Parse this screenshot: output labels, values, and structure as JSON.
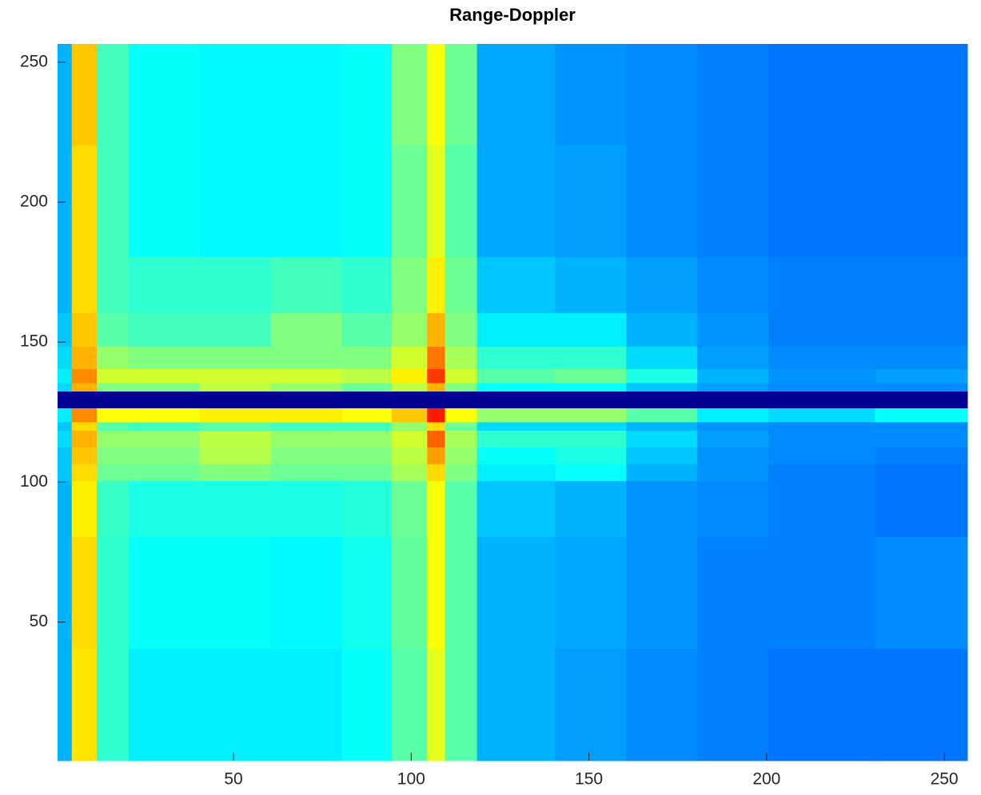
{
  "chart_data": {
    "type": "heatmap",
    "title": "Range-Doppler",
    "colormap": "jet",
    "clim": [
      0,
      1
    ],
    "x_edges": [
      0.5,
      4.5,
      11.5,
      20.5,
      40.5,
      60.5,
      80.5,
      94.5,
      104.5,
      109.5,
      118.5,
      140.5,
      160.5,
      180.5,
      200.5,
      230.5,
      256.5
    ],
    "y_edges": [
      0.5,
      40.5,
      80.5,
      100.5,
      106.5,
      112.5,
      118.5,
      121.5,
      126.5,
      132.5,
      135.5,
      140.5,
      148.5,
      160.5,
      180.5,
      220.5,
      256.5
    ],
    "z": [
      [
        0.3,
        0.65,
        0.42,
        0.36,
        0.36,
        0.36,
        0.38,
        0.46,
        0.6,
        0.46,
        0.3,
        0.28,
        0.26,
        0.25,
        0.24,
        0.24
      ],
      [
        0.3,
        0.66,
        0.42,
        0.38,
        0.38,
        0.37,
        0.39,
        0.47,
        0.62,
        0.46,
        0.3,
        0.29,
        0.27,
        0.25,
        0.25,
        0.26
      ],
      [
        0.3,
        0.64,
        0.43,
        0.4,
        0.4,
        0.4,
        0.41,
        0.48,
        0.62,
        0.46,
        0.32,
        0.3,
        0.27,
        0.26,
        0.25,
        0.24
      ],
      [
        0.32,
        0.66,
        0.48,
        0.48,
        0.5,
        0.48,
        0.48,
        0.54,
        0.66,
        0.5,
        0.36,
        0.38,
        0.3,
        0.27,
        0.25,
        0.24
      ],
      [
        0.32,
        0.68,
        0.5,
        0.5,
        0.55,
        0.5,
        0.5,
        0.56,
        0.72,
        0.52,
        0.38,
        0.4,
        0.32,
        0.27,
        0.26,
        0.25
      ],
      [
        0.34,
        0.7,
        0.52,
        0.52,
        0.56,
        0.52,
        0.52,
        0.58,
        0.78,
        0.54,
        0.42,
        0.42,
        0.34,
        0.28,
        0.26,
        0.26
      ],
      [
        0.32,
        0.66,
        0.46,
        0.44,
        0.46,
        0.44,
        0.44,
        0.52,
        0.66,
        0.48,
        0.34,
        0.34,
        0.3,
        0.27,
        0.26,
        0.26
      ],
      [
        0.36,
        0.74,
        0.62,
        0.62,
        0.64,
        0.64,
        0.62,
        0.68,
        0.85,
        0.62,
        0.52,
        0.52,
        0.46,
        0.36,
        0.34,
        0.38
      ],
      [
        0.02,
        0.02,
        0.02,
        0.02,
        0.02,
        0.02,
        0.02,
        0.02,
        0.02,
        0.02,
        0.02,
        0.02,
        0.02,
        0.02,
        0.02,
        0.02
      ],
      [
        0.34,
        0.7,
        0.5,
        0.5,
        0.56,
        0.52,
        0.48,
        0.56,
        0.7,
        0.5,
        0.38,
        0.38,
        0.32,
        0.28,
        0.26,
        0.26
      ],
      [
        0.36,
        0.74,
        0.58,
        0.58,
        0.58,
        0.58,
        0.56,
        0.64,
        0.82,
        0.58,
        0.46,
        0.48,
        0.4,
        0.3,
        0.27,
        0.28
      ],
      [
        0.34,
        0.7,
        0.52,
        0.5,
        0.5,
        0.5,
        0.5,
        0.58,
        0.76,
        0.54,
        0.42,
        0.42,
        0.34,
        0.28,
        0.26,
        0.26
      ],
      [
        0.32,
        0.68,
        0.46,
        0.44,
        0.44,
        0.5,
        0.46,
        0.52,
        0.7,
        0.5,
        0.36,
        0.36,
        0.3,
        0.27,
        0.25,
        0.25
      ],
      [
        0.3,
        0.66,
        0.44,
        0.42,
        0.42,
        0.44,
        0.42,
        0.5,
        0.64,
        0.48,
        0.32,
        0.3,
        0.28,
        0.26,
        0.25,
        0.25
      ],
      [
        0.3,
        0.66,
        0.44,
        0.38,
        0.37,
        0.37,
        0.38,
        0.48,
        0.6,
        0.46,
        0.29,
        0.28,
        0.26,
        0.25,
        0.24,
        0.24
      ],
      [
        0.3,
        0.68,
        0.44,
        0.38,
        0.37,
        0.37,
        0.38,
        0.5,
        0.62,
        0.48,
        0.29,
        0.27,
        0.26,
        0.25,
        0.24,
        0.24
      ]
    ],
    "xlim": [
      0.5,
      256.5
    ],
    "ylim": [
      0.5,
      256.5
    ],
    "xticks": [
      50,
      100,
      150,
      200,
      250
    ],
    "yticks": [
      50,
      100,
      150,
      200,
      250
    ]
  }
}
